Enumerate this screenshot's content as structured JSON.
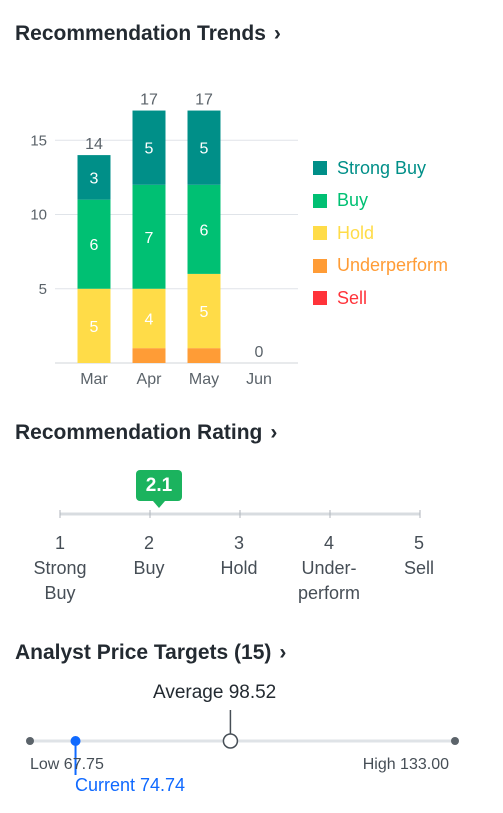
{
  "trends": {
    "title": "Recommendation Trends",
    "chevron": "chevron-right-icon"
  },
  "chart_data": {
    "type": "bar",
    "stacked": true,
    "title": "Recommendation Trends",
    "categories": [
      "Mar",
      "Apr",
      "May",
      "Jun"
    ],
    "totals": [
      14,
      17,
      17,
      0
    ],
    "ylim": [
      0,
      19
    ],
    "yticks": [
      5,
      10,
      15
    ],
    "grid": true,
    "legend_position": "right",
    "series": [
      {
        "name": "Sell",
        "color": "#ff333a",
        "values": [
          0,
          0,
          0,
          0
        ]
      },
      {
        "name": "Underperform",
        "color": "#ff9c36",
        "values": [
          0,
          1,
          1,
          0
        ]
      },
      {
        "name": "Hold",
        "color": "#ffdc48",
        "values": [
          5,
          4,
          5,
          0
        ]
      },
      {
        "name": "Buy",
        "color": "#00c073",
        "values": [
          6,
          7,
          6,
          0
        ]
      },
      {
        "name": "Strong Buy",
        "color": "#008f88",
        "values": [
          3,
          5,
          5,
          0
        ]
      }
    ]
  },
  "legend": [
    {
      "label": "Strong Buy",
      "color": "#008f88"
    },
    {
      "label": "Buy",
      "color": "#00c073"
    },
    {
      "label": "Hold",
      "color": "#ffdc48"
    },
    {
      "label": "Underperform",
      "color": "#ff9c36"
    },
    {
      "label": "Sell",
      "color": "#ff333a"
    }
  ],
  "rating": {
    "title": "Recommendation Rating",
    "chevron": "chevron-right-icon",
    "value": "2.1",
    "value_num": 2.1,
    "badge_color": "#1bb35e",
    "scale": [
      {
        "num": "1",
        "line1": "Strong",
        "line2": "Buy"
      },
      {
        "num": "2",
        "line1": "Buy",
        "line2": ""
      },
      {
        "num": "3",
        "line1": "Hold",
        "line2": ""
      },
      {
        "num": "4",
        "line1": "Under-",
        "line2": "perform"
      },
      {
        "num": "5",
        "line1": "Sell",
        "line2": ""
      }
    ]
  },
  "price_targets": {
    "title": "Analyst Price Targets (15)",
    "chevron": "chevron-right-icon",
    "low": 67.75,
    "high": 133.0,
    "average": 98.52,
    "current": 74.74,
    "average_label": "Average 98.52",
    "low_label": "Low 67.75",
    "high_label": "High 133.00",
    "current_label": "Current 74.74",
    "current_color": "#0f69ff"
  }
}
